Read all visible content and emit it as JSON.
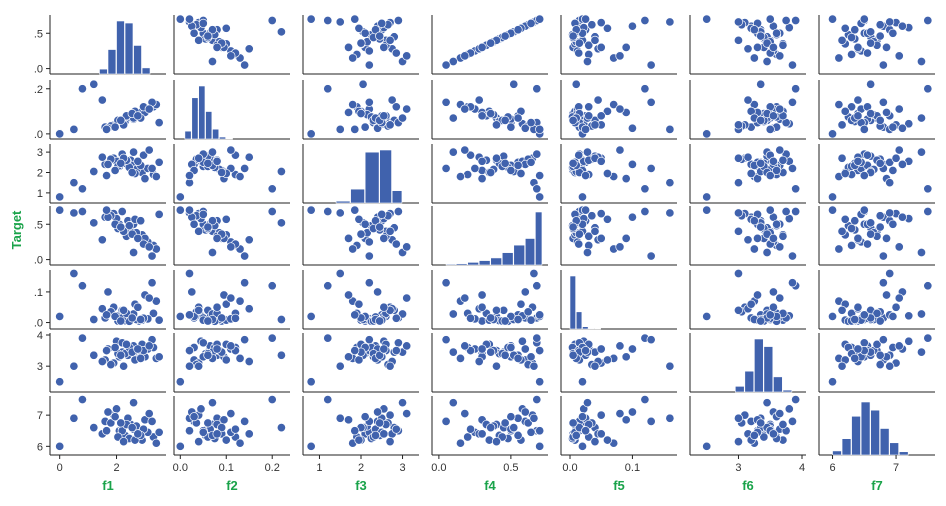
{
  "chart_data": {
    "type": "scatter",
    "subtype": "pairplot",
    "ylabel": "Target",
    "colors": {
      "point_fill": "#4062ad",
      "point_stroke": "#ffffff",
      "bar_fill": "#4062ad",
      "label_color": "#1aa34a",
      "axis_color": "#222222"
    },
    "grid": false,
    "variables": [
      {
        "name": "f1",
        "range": [
          -0.2,
          3.6
        ],
        "ticks": [
          0,
          2
        ],
        "tick_labels": [
          "0",
          "2"
        ],
        "y_ticks": null
      },
      {
        "name": "f2",
        "range": [
          -0.005,
          0.23
        ],
        "ticks": [
          0.0,
          0.1,
          0.2
        ],
        "tick_labels": [
          "0.0",
          "0.1",
          "0.2"
        ],
        "y_ticks": [
          0.0,
          0.2
        ],
        "y_tick_labels": [
          ".0",
          ".2"
        ]
      },
      {
        "name": "f3",
        "range": [
          0.7,
          3.3
        ],
        "ticks": [
          1,
          2,
          3
        ],
        "tick_labels": [
          "1",
          "2",
          "3"
        ],
        "y_ticks": [
          1,
          2,
          3
        ],
        "y_tick_labels": [
          "1",
          "2",
          "3"
        ]
      },
      {
        "name": "f4",
        "range": [
          -0.02,
          0.73
        ],
        "ticks": [
          0.0,
          0.5
        ],
        "tick_labels": [
          "0.0",
          "0.5"
        ],
        "y_ticks": [
          0.0,
          0.5
        ],
        "y_tick_labels": [
          ".0",
          ".5"
        ]
      },
      {
        "name": "f5",
        "range": [
          -0.008,
          0.165
        ],
        "ticks": [
          0.0,
          0.1
        ],
        "tick_labels": [
          "0.0",
          "0.1"
        ],
        "y_ticks": [
          0.0,
          0.1
        ],
        "y_tick_labels": [
          ".0",
          ".1"
        ]
      },
      {
        "name": "f6",
        "range": [
          2.3,
          4.0
        ],
        "ticks": [
          3,
          4
        ],
        "tick_labels": [
          "3",
          "4"
        ],
        "y_ticks": [
          3,
          4
        ],
        "y_tick_labels": [
          "3",
          "4"
        ]
      },
      {
        "name": "f7",
        "range": [
          5.85,
          7.55
        ],
        "ticks": [
          6,
          7
        ],
        "tick_labels": [
          "6",
          "7"
        ],
        "y_ticks": [
          6,
          7
        ],
        "y_tick_labels": [
          "6",
          "7"
        ]
      }
    ],
    "row_vars": [
      "f4",
      "f2",
      "f3",
      "f4",
      "f5",
      "f6",
      "f7"
    ],
    "row0_y_ticks": [
      0.0,
      0.5
    ],
    "row0_y_tick_labels": [
      ".0",
      ".5"
    ],
    "histograms": [
      {
        "var": "f1",
        "edges": [
          1.4,
          1.7,
          2.0,
          2.3,
          2.6,
          2.9,
          3.2
        ],
        "counts": [
          12,
          60,
          130,
          125,
          70,
          15
        ]
      },
      {
        "var": "f2",
        "edges": [
          0.01,
          0.025,
          0.04,
          0.055,
          0.07,
          0.085,
          0.1,
          0.115
        ],
        "counts": [
          20,
          105,
          135,
          70,
          25,
          5,
          1
        ]
      },
      {
        "var": "f3",
        "edges": [
          1.4,
          1.75,
          2.1,
          2.45,
          2.75,
          3.0
        ],
        "counts": [
          6,
          45,
          165,
          172,
          40
        ]
      },
      {
        "var": "f4",
        "edges": [
          0.05,
          0.12,
          0.2,
          0.28,
          0.36,
          0.44,
          0.52,
          0.6,
          0.67,
          0.72
        ],
        "counts": [
          2,
          3,
          6,
          10,
          16,
          28,
          45,
          60,
          120
        ]
      },
      {
        "var": "f5",
        "edges": [
          0.0,
          0.01,
          0.02,
          0.03,
          0.04,
          0.05
        ],
        "counts": [
          185,
          60,
          8,
          2,
          1
        ]
      },
      {
        "var": "f6",
        "edges": [
          2.95,
          3.1,
          3.25,
          3.4,
          3.55,
          3.7,
          3.85
        ],
        "counts": [
          15,
          55,
          140,
          120,
          40,
          5
        ]
      },
      {
        "var": "f7",
        "edges": [
          6.0,
          6.15,
          6.3,
          6.45,
          6.6,
          6.75,
          6.9,
          7.05,
          7.2
        ],
        "counts": [
          10,
          40,
          95,
          130,
          110,
          65,
          30,
          8
        ]
      }
    ],
    "sample": {
      "f1": [
        2.1,
        2.5,
        2.8,
        3.3,
        1.6,
        2.2,
        2.9,
        2.4,
        3.1,
        1.9,
        2.6,
        2.3,
        3.4,
        2.0,
        2.7,
        1.8,
        2.45,
        3.0,
        2.2,
        2.6,
        0.0,
        0.5,
        0.8,
        1.2,
        1.5,
        1.7,
        2.05,
        2.35,
        2.65,
        2.95,
        3.25,
        3.5,
        1.95,
        2.25,
        2.55,
        2.85,
        3.15,
        1.65,
        2.15,
        2.75
      ],
      "f2": [
        0.05,
        0.07,
        0.09,
        0.12,
        0.03,
        0.06,
        0.1,
        0.08,
        0.11,
        0.04,
        0.065,
        0.055,
        0.13,
        0.045,
        0.085,
        0.035,
        0.075,
        0.095,
        0.05,
        0.07,
        0.0,
        0.02,
        0.2,
        0.22,
        0.15,
        0.025,
        0.06,
        0.08,
        0.1,
        0.12,
        0.14,
        0.05,
        0.03,
        0.04,
        0.09,
        0.07,
        0.11,
        0.02,
        0.06,
        0.08
      ],
      "f3": [
        2.3,
        2.6,
        2.1,
        1.9,
        2.4,
        2.8,
        2.0,
        2.5,
        2.2,
        2.7,
        2.35,
        2.45,
        1.8,
        2.55,
        2.15,
        2.65,
        2.25,
        1.7,
        2.9,
        3.0,
        0.8,
        1.5,
        1.2,
        2.05,
        2.75,
        2.4,
        2.3,
        2.6,
        1.95,
        2.85,
        2.2,
        2.5,
        2.1,
        2.7,
        2.0,
        2.35,
        3.1,
        1.85,
        2.45,
        2.55
      ],
      "f4": [
        0.5,
        0.4,
        0.3,
        0.2,
        0.6,
        0.45,
        0.35,
        0.55,
        0.25,
        0.65,
        0.5,
        0.42,
        0.15,
        0.58,
        0.38,
        0.62,
        0.48,
        0.3,
        0.68,
        0.1,
        0.7,
        0.66,
        0.68,
        0.52,
        0.28,
        0.6,
        0.44,
        0.33,
        0.57,
        0.22,
        0.05,
        0.64,
        0.5,
        0.4,
        0.36,
        0.55,
        0.18,
        0.7,
        0.46,
        0.3
      ],
      "f5": [
        0.01,
        0.02,
        0.005,
        0.03,
        0.015,
        0.04,
        0.008,
        0.025,
        0.012,
        0.05,
        0.018,
        0.006,
        0.07,
        0.022,
        0.01,
        0.035,
        0.004,
        0.09,
        0.015,
        0.028,
        0.02,
        0.16,
        0.12,
        0.01,
        0.045,
        0.1,
        0.005,
        0.03,
        0.06,
        0.014,
        0.13,
        0.008,
        0.02,
        0.04,
        0.015,
        0.01,
        0.08,
        0.025,
        0.005,
        0.05
      ],
      "f6": [
        3.3,
        3.5,
        3.4,
        3.6,
        3.2,
        3.45,
        3.7,
        3.35,
        3.55,
        3.1,
        3.65,
        3.4,
        3.25,
        3.8,
        3.5,
        3.05,
        3.6,
        3.3,
        3.75,
        3.45,
        2.5,
        3.0,
        3.9,
        3.35,
        3.15,
        3.55,
        3.4,
        3.7,
        3.2,
        3.5,
        3.85,
        3.3,
        3.6,
        3.0,
        3.45,
        3.25,
        3.65,
        3.5,
        3.35,
        3.55
      ],
      "f7": [
        6.5,
        6.7,
        6.4,
        6.3,
        6.8,
        6.6,
        6.2,
        6.9,
        6.45,
        7.0,
        6.55,
        6.35,
        6.1,
        7.2,
        6.65,
        6.75,
        6.25,
        6.85,
        6.5,
        7.4,
        6.0,
        6.9,
        7.5,
        6.6,
        6.4,
        7.1,
        6.3,
        6.7,
        6.2,
        6.55,
        6.8,
        6.45,
        6.95,
        6.15,
        6.6,
        6.35,
        7.05,
        6.5,
        6.75,
        6.4
      ]
    }
  }
}
